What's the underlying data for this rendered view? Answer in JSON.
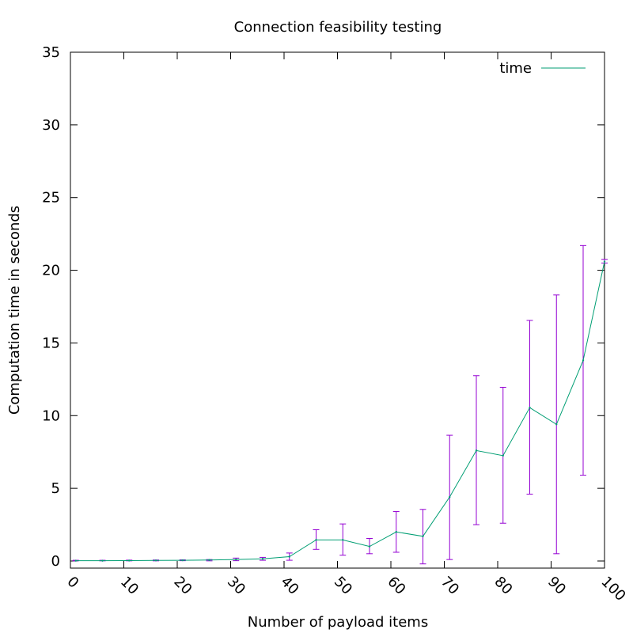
{
  "chart_data": {
    "type": "line",
    "title": "Connection feasibility testing",
    "xlabel": "Number of payload items",
    "ylabel": "Computation time in seconds",
    "xlim": [
      0,
      100
    ],
    "ylim": [
      0,
      35
    ],
    "x_ticks": [
      "0",
      "10",
      "20",
      "30",
      "40",
      "50",
      "60",
      "70",
      "80",
      "90",
      "100"
    ],
    "y_ticks": [
      "0",
      "5",
      "10",
      "15",
      "20",
      "25",
      "30",
      "35"
    ],
    "grid": false,
    "legend_position": "top-right",
    "series": [
      {
        "name": "time",
        "color": "#009e73",
        "error_color": "#9400d3",
        "x": [
          1,
          6,
          11,
          16,
          21,
          26,
          31,
          36,
          41,
          46,
          51,
          56,
          61,
          66,
          71,
          76,
          81,
          86,
          91,
          96,
          100
        ],
        "y": [
          0.02,
          0.02,
          0.03,
          0.04,
          0.05,
          0.07,
          0.1,
          0.15,
          0.3,
          1.45,
          1.45,
          1.0,
          2.0,
          1.7,
          4.4,
          7.6,
          7.25,
          10.55,
          9.4,
          13.8,
          20.6
        ],
        "err_low": [
          0.01,
          0.01,
          0.01,
          0.01,
          0.02,
          0.01,
          0.02,
          0.05,
          0.05,
          0.8,
          0.4,
          0.5,
          0.6,
          -0.2,
          0.1,
          2.5,
          2.6,
          4.6,
          0.5,
          5.9,
          20.5
        ],
        "err_high": [
          0.05,
          0.05,
          0.06,
          0.07,
          0.08,
          0.1,
          0.2,
          0.25,
          0.55,
          2.15,
          2.55,
          1.55,
          3.4,
          3.55,
          8.65,
          12.75,
          11.95,
          16.55,
          18.3,
          21.7,
          20.75
        ]
      }
    ]
  }
}
